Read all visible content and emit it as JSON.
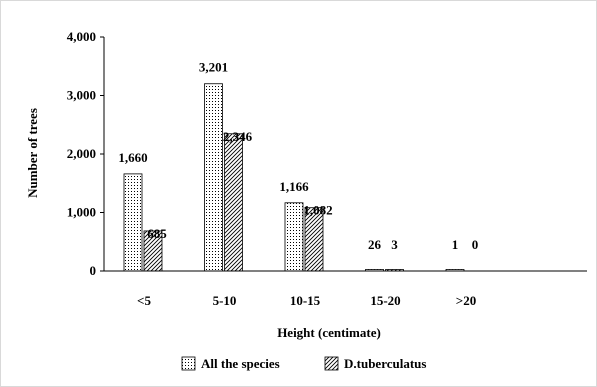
{
  "chart_data": {
    "type": "bar",
    "categories": [
      "<5",
      "5-10",
      "10-15",
      "15-20",
      ">20"
    ],
    "series": [
      {
        "name": "All the species",
        "values": [
          1660,
          3201,
          1166,
          26,
          1
        ],
        "labels": [
          "1,660",
          "3,201",
          "1,166",
          "26",
          "1"
        ],
        "pattern": "dots"
      },
      {
        "name": "D.tuberculatus",
        "values": [
          685,
          2346,
          1082,
          3,
          0
        ],
        "labels": [
          "685",
          "2,346",
          "1,082",
          "3",
          "0"
        ],
        "pattern": "hatch"
      }
    ],
    "title": "",
    "xlabel": "Height (centimate)",
    "ylabel": "Number of trees",
    "ylim": [
      0,
      4000
    ],
    "yticks": [
      0,
      1000,
      2000,
      3000,
      4000
    ],
    "ytick_labels": [
      "0",
      "1,000",
      "2,000",
      "3,000",
      "4,000"
    ],
    "grid": false,
    "legend_position": "bottom"
  }
}
